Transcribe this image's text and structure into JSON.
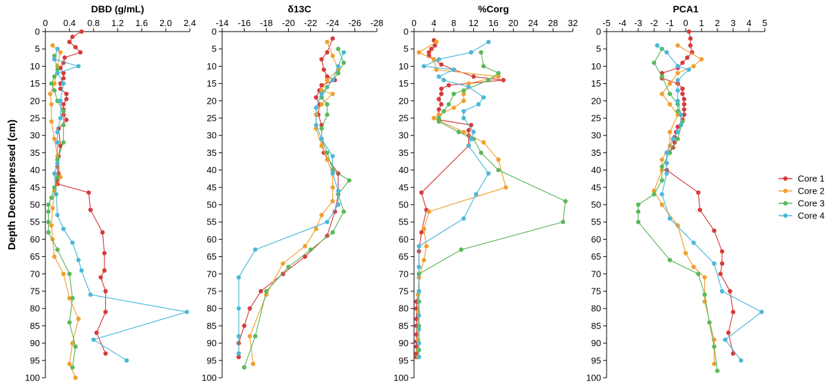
{
  "chart_data": {
    "type": "line",
    "ylabel": "Depth Decompressed (cm)",
    "ylim": [
      0,
      100
    ],
    "yticks": [
      0,
      5,
      10,
      15,
      20,
      25,
      30,
      35,
      40,
      45,
      50,
      55,
      60,
      65,
      70,
      75,
      80,
      85,
      90,
      95,
      100
    ],
    "legend": {
      "placement": "right",
      "entries": [
        "Core 1",
        "Core 2",
        "Core 3",
        "Core 4"
      ]
    },
    "series_colors": [
      "#d63c3c",
      "#f0a030",
      "#5bb85b",
      "#4db8d8"
    ],
    "panels": [
      {
        "title": "DBD (g/mL)",
        "xlim": [
          0,
          2.4
        ],
        "xticks": [
          "0",
          "0.4",
          "0.8",
          "1.2",
          "1.6",
          "2.0",
          "2.4"
        ],
        "series": [
          {
            "name": "Core 1",
            "x": [
              0.6,
              0.45,
              0.4,
              0.5,
              0.58,
              0.32,
              0.3,
              0.25,
              0.3,
              0.3,
              0.25,
              0.25,
              0.35,
              0.35,
              0.3,
              0.3,
              0.3,
              0.35,
              0.22,
              0.25,
              0.22,
              0.2,
              0.22,
              0.2,
              0.2,
              0.2,
              0.72,
              0.75,
              0.95,
              0.98,
              0.98,
              0.92,
              1.0,
              1.0,
              0.85,
              1.0
            ],
            "y": [
              0,
              1.5,
              3,
              4.5,
              6,
              7.5,
              9,
              10.5,
              12,
              13.5,
              15,
              16.5,
              18,
              19.5,
              21,
              22.5,
              24,
              25.5,
              28,
              33,
              36,
              39,
              41,
              43,
              44,
              44,
              46.5,
              51.5,
              58,
              64,
              69,
              71,
              75,
              81,
              87,
              93
            ]
          },
          {
            "name": "Core 2",
            "x": [
              0.12,
              0.25,
              0.2,
              0.15,
              0.08,
              0.1,
              0.1,
              0.15,
              0.2,
              0.25,
              0.15,
              0.12,
              0.1,
              0.12,
              0.15,
              0.3,
              0.4,
              0.55,
              0.45,
              0.4,
              0.5
            ],
            "y": [
              4,
              6,
              10,
              15,
              18,
              21,
              26,
              31,
              36,
              42,
              46,
              51,
              56,
              60,
              65,
              70,
              77,
              83,
              90,
              96,
              100
            ]
          },
          {
            "name": "Core 3",
            "x": [
              0.15,
              0.2,
              0.15,
              0.1,
              0.15,
              0.2,
              0.3,
              0.3,
              0.3,
              0.2,
              0.2,
              0.15,
              0.1,
              0.05,
              0.05,
              0.05,
              0.05,
              0.2,
              0.4,
              0.45,
              0.4,
              0.5,
              0.45
            ],
            "y": [
              7,
              11,
              13,
              15,
              17,
              20,
              23,
              27,
              32,
              37,
              42,
              45,
              48,
              50,
              52,
              55,
              58,
              63,
              70,
              77,
              84,
              91,
              97
            ]
          },
          {
            "name": "Core 4",
            "x": [
              0.2,
              0.15,
              0.55,
              0.2,
              0.3,
              0.25,
              0.25,
              0.2,
              0.2,
              0.2,
              0.15,
              0.18,
              0.2,
              0.3,
              0.45,
              0.55,
              0.6,
              0.75,
              2.35,
              0.8,
              1.35
            ],
            "y": [
              5,
              8,
              10,
              12,
              15,
              20,
              25,
              29,
              32,
              38,
              41,
              47,
              53,
              57,
              61,
              66,
              69,
              76,
              81,
              89,
              95
            ]
          }
        ]
      },
      {
        "title": "δ13C",
        "xlim": [
          -14,
          -28
        ],
        "xticks": [
          "-14",
          "-16",
          "-18",
          "-20",
          "-22",
          "-24",
          "-26",
          "-28"
        ],
        "series": [
          {
            "name": "Core 1",
            "x": [
              -24,
              -23.5,
              -23,
              -23.2,
              -23.5,
              -24.2,
              -23,
              -22.8,
              -22.5,
              -22.8,
              -22.7,
              -23,
              -23,
              -23.2,
              -24.5,
              -24.5,
              -24.2,
              -23.5,
              -21.5,
              -19.5,
              -17.5,
              -16.5,
              -16,
              -15.5,
              -15.5
            ],
            "y": [
              2,
              6,
              8,
              11,
              13,
              14,
              15.5,
              17,
              19,
              21,
              24,
              27,
              31,
              35,
              41,
              47,
              52,
              59,
              65,
              70,
              75,
              80,
              85,
              90,
              94
            ]
          },
          {
            "name": "Core 2",
            "x": [
              -23.5,
              -24,
              -24.5,
              -23.5,
              -23,
              -24,
              -23,
              -22.5,
              -22.5,
              -23,
              -23.5,
              -24,
              -24,
              -24,
              -23,
              -22.5,
              -21.5,
              -19.5,
              -18,
              -16.5,
              -16.8
            ],
            "y": [
              3,
              7,
              11,
              14,
              17,
              18,
              21,
              24,
              28,
              33,
              37,
              41,
              45,
              49,
              53,
              57,
              62,
              67,
              76,
              88,
              96
            ]
          },
          {
            "name": "Core 3",
            "x": [
              -24.5,
              -25,
              -24.5,
              -23.5,
              -23,
              -23.5,
              -23.5,
              -23,
              -23,
              -23.5,
              -24,
              -25.5,
              -24.5,
              -25,
              -24,
              -22,
              -20,
              -18,
              -17,
              -16
            ],
            "y": [
              5,
              9,
              12,
              16,
              19,
              21,
              24,
              28,
              31,
              35,
              40,
              43,
              47,
              52,
              58,
              63,
              68,
              75,
              88,
              97
            ]
          },
          {
            "name": "Core 4",
            "x": [
              -25,
              -24.5,
              -24,
              -23,
              -22.5,
              -22.5,
              -23,
              -24,
              -24,
              -24.5,
              -24.5,
              -23.5,
              -17,
              -15.5,
              -15.5,
              -15.5,
              -15.5
            ],
            "y": [
              6,
              10,
              14,
              18,
              22,
              27,
              31,
              36,
              41,
              46,
              50,
              55,
              63,
              71,
              80,
              88,
              93
            ]
          }
        ]
      },
      {
        "title": "%Corg",
        "xlim": [
          0,
          32
        ],
        "xticks": [
          "0",
          "4",
          "8",
          "12",
          "16",
          "20",
          "24",
          "28",
          "32"
        ],
        "series": [
          {
            "name": "Core 1",
            "x": [
              4,
              4.2,
              3.5,
              3,
              3,
              4,
              5.5,
              8,
              12,
              18,
              7,
              5.5,
              5.5,
              5,
              5.5,
              5,
              5,
              5,
              11.5,
              11,
              11,
              11,
              1.5,
              2.5,
              1.5,
              1,
              1,
              1,
              0.5,
              0.5,
              0.5,
              0.5,
              0.5,
              0.5,
              0.5,
              0.5,
              0.5
            ],
            "y": [
              2.5,
              4,
              5,
              6,
              7,
              8,
              9.5,
              11,
              13,
              14,
              15.5,
              16.5,
              18,
              19.5,
              21,
              22.5,
              24,
              25.5,
              27,
              28.5,
              30,
              33,
              46.5,
              51.5,
              58,
              63.5,
              70,
              75,
              78,
              80,
              83,
              85,
              87.5,
              89.5,
              91,
              93,
              94
            ]
          },
          {
            "name": "Core 2",
            "x": [
              4.5,
              1,
              4,
              4.5,
              17,
              11,
              10,
              10,
              8,
              5,
              4,
              4,
              10,
              14,
              17,
              18.5,
              3,
              2,
              2.5,
              2,
              1,
              0.8,
              0.8,
              0.8,
              0.8,
              0.8,
              0.8
            ],
            "y": [
              3,
              6,
              8,
              11,
              13,
              15,
              18,
              20,
              22,
              24,
              25,
              25,
              29,
              32,
              37,
              45,
              52,
              57,
              62,
              66,
              71,
              76,
              81,
              86,
              89,
              92,
              94
            ]
          },
          {
            "name": "Core 3",
            "x": [
              13.5,
              14,
              17,
              15,
              10,
              8,
              7,
              6,
              5,
              5,
              9,
              12,
              13.5,
              17,
              30.5,
              30,
              9.5,
              1,
              1,
              1,
              1
            ],
            "y": [
              6,
              10,
              12,
              14,
              17,
              18,
              21,
              23,
              25,
              26,
              29,
              31,
              35,
              40,
              49,
              55,
              63,
              70,
              78,
              85,
              92
            ]
          },
          {
            "name": "Core 4",
            "x": [
              15,
              11.5,
              5,
              2,
              8,
              5,
              6,
              11,
              14,
              13,
              10,
              10,
              12,
              11.5,
              11,
              15,
              12.5,
              10,
              1,
              1,
              1,
              1,
              1,
              1,
              1
            ],
            "y": [
              3,
              6,
              8,
              10,
              11,
              13,
              14,
              16,
              19,
              21,
              23,
              25,
              29,
              31,
              33,
              41,
              47,
              54,
              62,
              68,
              75,
              82,
              86,
              90,
              94
            ]
          }
        ]
      },
      {
        "title": "PCA1",
        "xlim": [
          -5,
          5
        ],
        "xticks": [
          "-5",
          "-4",
          "-3",
          "-2",
          "-1",
          "0",
          "1",
          "2",
          "3",
          "4",
          "5"
        ],
        "series": [
          {
            "name": "Core 1",
            "x": [
              0.2,
              0.3,
              0.3,
              0.4,
              0.1,
              -0.2,
              -0.5,
              -1.5,
              -1.5,
              -0.5,
              -0.2,
              -0.2,
              -0.1,
              -0.1,
              -0.1,
              -0.1,
              -0.2,
              -0.5,
              -0.6,
              -0.7,
              -0.7,
              -0.8,
              -1.2,
              -1.2,
              -1.2,
              0.8,
              0.9,
              1.8,
              2.3,
              2.3,
              2.2,
              2.8,
              3.0,
              2.7,
              3.0
            ],
            "y": [
              0,
              2,
              4,
              6,
              7.5,
              9,
              10.5,
              12,
              13.5,
              15,
              16.5,
              18,
              19.5,
              21,
              22.5,
              24,
              25.5,
              27.5,
              29,
              30.5,
              32,
              33.5,
              35,
              38,
              40,
              46.5,
              51.5,
              57.5,
              63.5,
              67,
              70,
              75,
              81,
              87,
              93
            ]
          },
          {
            "name": "Core 2",
            "x": [
              -0.5,
              1,
              0.5,
              -0.5,
              -1,
              -1.5,
              -1,
              -0.5,
              -1,
              -1,
              -1.5,
              -1.5,
              -2,
              -1.5,
              -0.5,
              0,
              0.5,
              1.2,
              1.2,
              1.8,
              1.8
            ],
            "y": [
              4,
              8,
              10,
              12,
              15,
              18,
              21,
              24,
              29,
              33,
              37,
              40,
              46,
              50,
              56,
              64,
              68,
              71,
              78,
              89,
              96
            ]
          },
          {
            "name": "Core 3",
            "x": [
              -1.5,
              -2,
              -1.5,
              -1,
              -0.5,
              -0.5,
              -0.2,
              -0.5,
              -1,
              -1.5,
              -1.5,
              -2,
              -3,
              -3,
              -3,
              -1,
              0.8,
              1.2,
              1.5,
              1.8,
              2
            ],
            "y": [
              5,
              9,
              13,
              18,
              21,
              23,
              26,
              31,
              35,
              39,
              43,
              47,
              50,
              52,
              55,
              66,
              70,
              76,
              84,
              91,
              98
            ]
          },
          {
            "name": "Core 4",
            "x": [
              -1.8,
              -1.2,
              -0.5,
              0.2,
              -0.5,
              -0.5,
              -0.5,
              -0.3,
              -0.3,
              -0.5,
              -0.8,
              -1.2,
              -1.2,
              -1.2,
              -1.5,
              -1.0,
              0.5,
              1.8,
              2.3,
              4.8,
              2.5,
              3.5
            ],
            "y": [
              4,
              6,
              10,
              11,
              14,
              17,
              20,
              24,
              27,
              29,
              31,
              35,
              38,
              41,
              47,
              54,
              61,
              67,
              75,
              81,
              89,
              95
            ]
          }
        ]
      }
    ]
  }
}
